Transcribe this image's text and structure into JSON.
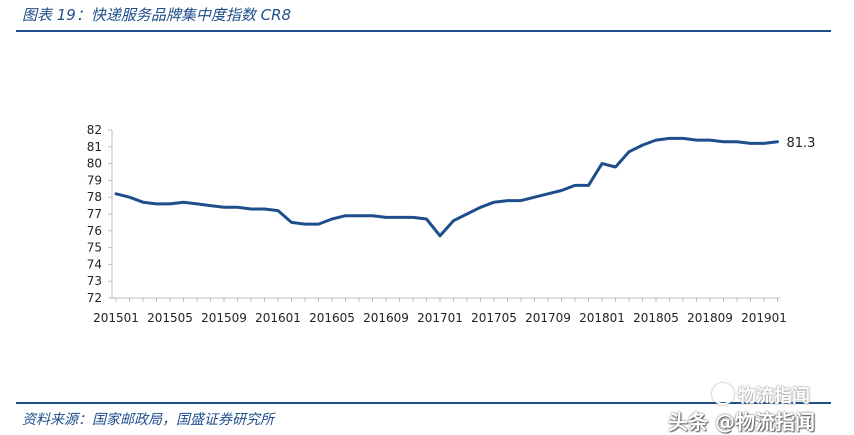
{
  "figure": {
    "title": "图表 19：快递服务品牌集中度指数 CR8",
    "source": "资料来源：国家邮政局，国盛证券研究所"
  },
  "watermark": {
    "upper": "物流指闻",
    "lower": "头条 @物流指闻"
  },
  "colors": {
    "line": "#1f4e8c",
    "accent": "#1f4e8c",
    "axis": "#bfbfbf",
    "text": "#222222"
  },
  "chart_data": {
    "type": "line",
    "title": "",
    "xlabel": "",
    "ylabel": "",
    "ylim": [
      72,
      82
    ],
    "yticks": [
      72,
      73,
      74,
      75,
      76,
      77,
      78,
      79,
      80,
      81,
      82
    ],
    "x_tick_labels": [
      "201501",
      "201505",
      "201509",
      "201601",
      "201605",
      "201609",
      "201701",
      "201705",
      "201709",
      "201801",
      "201805",
      "201809",
      "201901"
    ],
    "grid": false,
    "legend": "none",
    "end_label": "81.3",
    "categories": [
      "201501",
      "201502",
      "201503",
      "201504",
      "201505",
      "201506",
      "201507",
      "201508",
      "201509",
      "201510",
      "201511",
      "201512",
      "201601",
      "201602",
      "201603",
      "201604",
      "201605",
      "201606",
      "201607",
      "201608",
      "201609",
      "201610",
      "201611",
      "201612",
      "201701",
      "201702",
      "201703",
      "201704",
      "201705",
      "201706",
      "201707",
      "201708",
      "201709",
      "201710",
      "201711",
      "201712",
      "201801",
      "201802",
      "201803",
      "201804",
      "201805",
      "201806",
      "201807",
      "201808",
      "201809",
      "201810",
      "201811",
      "201812",
      "201901",
      "201902"
    ],
    "values": [
      78.2,
      78.0,
      77.7,
      77.6,
      77.6,
      77.7,
      77.6,
      77.5,
      77.4,
      77.4,
      77.3,
      77.3,
      77.2,
      76.5,
      76.4,
      76.4,
      76.7,
      76.9,
      76.9,
      76.9,
      76.8,
      76.8,
      76.8,
      76.7,
      75.7,
      76.6,
      77.0,
      77.4,
      77.7,
      77.8,
      77.8,
      78.0,
      78.2,
      78.4,
      78.7,
      78.7,
      80.0,
      79.8,
      80.7,
      81.1,
      81.4,
      81.5,
      81.5,
      81.4,
      81.4,
      81.3,
      81.3,
      81.2,
      81.2,
      81.3
    ]
  }
}
